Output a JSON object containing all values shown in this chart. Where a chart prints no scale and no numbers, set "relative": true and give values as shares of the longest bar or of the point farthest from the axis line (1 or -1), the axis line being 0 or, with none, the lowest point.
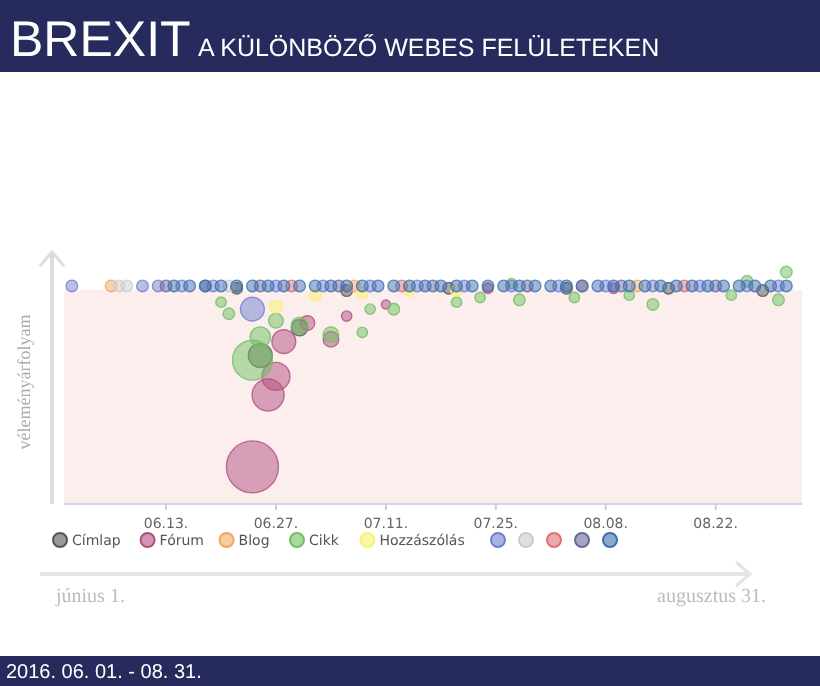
{
  "chart_data": {
    "type": "bubble",
    "title": "BREXIT",
    "subtitle": "A KÜLÖNBÖZŐ WEBES FELÜLETEKEN",
    "ylabel": "véleményárfolyam",
    "relative": true,
    "legend": "bottom",
    "xlim": [
      "--05-31",
      "--09-02"
    ],
    "xticks": [
      {
        "value": "--06-13",
        "label": "06.13."
      },
      {
        "value": "--06-27",
        "label": "06.27."
      },
      {
        "value": "--07-11",
        "label": "07.11."
      },
      {
        "value": "--07-25",
        "label": "07.25."
      },
      {
        "value": "--08-08",
        "label": "08.08."
      },
      {
        "value": "--08-22",
        "label": "08.22."
      }
    ],
    "annotations": [
      "június 1.",
      "augusztus 31.",
      "2016. 06. 01. - 08. 31."
    ],
    "series": [
      {
        "name": "Címlap",
        "color": "#555555",
        "x": [
          "--06-22",
          "--06-25",
          "--06-30",
          "--07-06",
          "--07-19",
          "--08-03",
          "--08-16",
          "--08-28"
        ],
        "values": [
          0.93,
          0.64,
          0.76,
          0.92,
          0.93,
          0.93,
          0.93,
          0.92
        ],
        "sizes": [
          0.05,
          0.21,
          0.1,
          0.05,
          0.05,
          0.05,
          0.05,
          0.05
        ]
      },
      {
        "name": "Fórum",
        "color": "#b05080",
        "x": [
          "--06-24",
          "--06-26",
          "--06-27",
          "--06-28",
          "--07-01",
          "--07-04",
          "--07-06",
          "--07-11",
          "--07-24",
          "--08-09"
        ],
        "values": [
          0.16,
          0.47,
          0.55,
          0.7,
          0.78,
          0.71,
          0.81,
          0.86,
          0.93,
          0.93
        ],
        "sizes": [
          1,
          0.38,
          0.29,
          0.21,
          0.08,
          0.09,
          0.04,
          0.03,
          0.04,
          0.04
        ]
      },
      {
        "name": "Blog",
        "color": "#f0a860",
        "x": [
          "--06-06",
          "--07-07",
          "--08-12"
        ],
        "values": [
          0.94,
          0.94,
          0.94
        ],
        "sizes": [
          0.05,
          0.05,
          0.05
        ]
      },
      {
        "name": "Cikk",
        "color": "#70c060",
        "x": [
          "--06-20",
          "--06-21",
          "--06-24",
          "--06-25",
          "--06-27",
          "--06-30",
          "--07-04",
          "--07-08",
          "--07-09",
          "--07-12",
          "--07-20",
          "--07-23",
          "--07-27",
          "--07-28",
          "--08-04",
          "--08-11",
          "--08-14",
          "--08-24",
          "--08-26",
          "--08-30",
          "--08-31"
        ],
        "values": [
          0.87,
          0.82,
          0.62,
          0.72,
          0.79,
          0.77,
          0.73,
          0.74,
          0.84,
          0.84,
          0.87,
          0.89,
          0.95,
          0.88,
          0.89,
          0.9,
          0.86,
          0.9,
          0.96,
          0.88,
          1
        ],
        "sizes": [
          0.04,
          0.05,
          0.59,
          0.15,
          0.08,
          0.1,
          0.09,
          0.04,
          0.04,
          0.05,
          0.04,
          0.04,
          0.04,
          0.05,
          0.04,
          0.04,
          0.05,
          0.04,
          0.05,
          0.05,
          0.05
        ]
      },
      {
        "name": "Hozzászólás",
        "color": "#f8f070",
        "x": [
          "--06-27",
          "--07-02",
          "--07-08",
          "--07-14",
          "--07-20"
        ],
        "values": [
          0.85,
          0.9,
          0.91,
          0.92,
          0.92
        ],
        "sizes": [
          0.06,
          0.05,
          0.05,
          0.05,
          0.05
        ]
      },
      {
        "color": "#7080d0",
        "x": [
          "--06-01",
          "--06-10",
          "--06-12",
          "--06-15",
          "--06-19",
          "--06-24",
          "--06-27",
          "--07-03",
          "--07-09",
          "--07-15",
          "--07-21",
          "--07-27",
          "--08-02",
          "--08-08",
          "--08-14",
          "--08-20",
          "--08-26",
          "--08-30"
        ],
        "values": [
          0.94,
          0.94,
          0.94,
          0.94,
          0.94,
          0.84,
          0.94,
          0.94,
          0.94,
          0.94,
          0.94,
          0.94,
          0.94,
          0.94,
          0.94,
          0.94,
          0.94,
          0.94
        ],
        "sizes": [
          0.05,
          0.05,
          0.05,
          0.05,
          0.05,
          0.21,
          0.05,
          0.05,
          0.05,
          0.05,
          0.05,
          0.05,
          0.05,
          0.05,
          0.05,
          0.05,
          0.05,
          0.05
        ]
      },
      {
        "color": "#cccccc",
        "x": [
          "--06-07",
          "--06-08",
          "--06-21"
        ],
        "values": [
          0.94,
          0.94,
          0.94
        ],
        "sizes": [
          0.05,
          0.05,
          0.05
        ]
      },
      {
        "color": "#e07070",
        "x": [
          "--06-29",
          "--07-13",
          "--08-05",
          "--08-18"
        ],
        "values": [
          0.94,
          0.94,
          0.94,
          0.94
        ],
        "sizes": [
          0.05,
          0.05,
          0.05,
          0.05
        ]
      },
      {
        "color": "#6a6a9a",
        "x": [
          "--06-13",
          "--06-18",
          "--06-25",
          "--07-05",
          "--07-17",
          "--07-29",
          "--08-10",
          "--08-22"
        ],
        "values": [
          0.94,
          0.94,
          0.94,
          0.94,
          0.94,
          0.94,
          0.94,
          0.94
        ],
        "sizes": [
          0.05,
          0.05,
          0.05,
          0.05,
          0.05,
          0.05,
          0.05,
          0.05
        ]
      },
      {
        "color": "#3f6fb0",
        "x": [
          "--06-14",
          "--06-16",
          "--06-18",
          "--06-20",
          "--06-22",
          "--06-24",
          "--06-26",
          "--06-28",
          "--06-30",
          "--07-02",
          "--07-04",
          "--07-06",
          "--07-08",
          "--07-10",
          "--07-12",
          "--07-14",
          "--07-16",
          "--07-18",
          "--07-20",
          "--07-22",
          "--07-24",
          "--07-26",
          "--07-28",
          "--07-30",
          "--08-01",
          "--08-03",
          "--08-05",
          "--08-07",
          "--08-09",
          "--08-11",
          "--08-13",
          "--08-15",
          "--08-17",
          "--08-19",
          "--08-21",
          "--08-23",
          "--08-25",
          "--08-27",
          "--08-29",
          "--08-31"
        ],
        "values": [
          0.94,
          0.94,
          0.94,
          0.94,
          0.94,
          0.94,
          0.94,
          0.94,
          0.94,
          0.94,
          0.94,
          0.94,
          0.94,
          0.94,
          0.94,
          0.94,
          0.94,
          0.94,
          0.94,
          0.94,
          0.94,
          0.94,
          0.94,
          0.94,
          0.94,
          0.94,
          0.94,
          0.94,
          0.94,
          0.94,
          0.94,
          0.94,
          0.94,
          0.94,
          0.94,
          0.94,
          0.94,
          0.94,
          0.94,
          0.94
        ],
        "sizes": [
          0.05,
          0.05,
          0.05,
          0.05,
          0.05,
          0.05,
          0.05,
          0.05,
          0.05,
          0.05,
          0.05,
          0.05,
          0.05,
          0.05,
          0.05,
          0.05,
          0.05,
          0.05,
          0.05,
          0.05,
          0.05,
          0.05,
          0.05,
          0.05,
          0.05,
          0.05,
          0.05,
          0.05,
          0.05,
          0.05,
          0.05,
          0.05,
          0.05,
          0.05,
          0.05,
          0.05,
          0.05,
          0.05,
          0.05,
          0.05
        ]
      }
    ]
  }
}
